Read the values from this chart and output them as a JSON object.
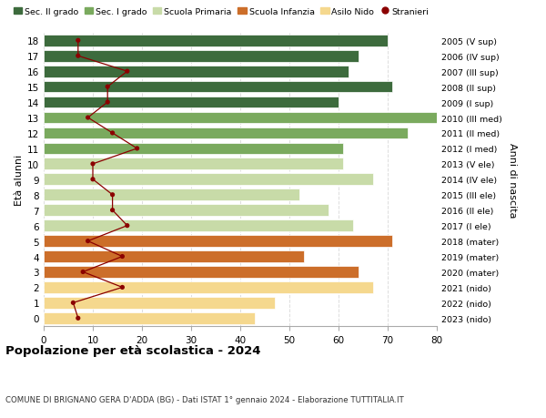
{
  "ages": [
    0,
    1,
    2,
    3,
    4,
    5,
    6,
    7,
    8,
    9,
    10,
    11,
    12,
    13,
    14,
    15,
    16,
    17,
    18
  ],
  "bar_values": [
    43,
    47,
    67,
    64,
    53,
    71,
    63,
    58,
    52,
    67,
    61,
    61,
    74,
    80,
    60,
    71,
    62,
    64,
    70
  ],
  "foreigners": [
    7,
    6,
    16,
    8,
    16,
    9,
    17,
    14,
    14,
    10,
    10,
    19,
    14,
    9,
    13,
    13,
    17,
    7,
    7
  ],
  "bar_colors": [
    "#f5d88e",
    "#f5d88e",
    "#f5d88e",
    "#cc6e2a",
    "#cc6e2a",
    "#cc6e2a",
    "#c8dba8",
    "#c8dba8",
    "#c8dba8",
    "#c8dba8",
    "#c8dba8",
    "#7aaa5e",
    "#7aaa5e",
    "#7aaa5e",
    "#3d6b3d",
    "#3d6b3d",
    "#3d6b3d",
    "#3d6b3d",
    "#3d6b3d"
  ],
  "right_labels": [
    "2023 (nido)",
    "2022 (nido)",
    "2021 (nido)",
    "2020 (mater)",
    "2019 (mater)",
    "2018 (mater)",
    "2017 (I ele)",
    "2016 (II ele)",
    "2015 (III ele)",
    "2014 (IV ele)",
    "2013 (V ele)",
    "2012 (I med)",
    "2011 (II med)",
    "2010 (III med)",
    "2009 (I sup)",
    "2008 (II sup)",
    "2007 (III sup)",
    "2006 (IV sup)",
    "2005 (V sup)"
  ],
  "title": "Popolazione per età scolastica - 2024",
  "subtitle": "COMUNE DI BRIGNANO GERA D'ADDA (BG) - Dati ISTAT 1° gennaio 2024 - Elaborazione TUTTITALIA.IT",
  "ylabel_left": "Età alunni",
  "ylabel_right": "Anni di nascita",
  "xlim": [
    0,
    80
  ],
  "xticks": [
    0,
    10,
    20,
    30,
    40,
    50,
    60,
    70,
    80
  ],
  "legend_items": [
    {
      "label": "Sec. II grado",
      "color": "#3d6b3d"
    },
    {
      "label": "Sec. I grado",
      "color": "#7aaa5e"
    },
    {
      "label": "Scuola Primaria",
      "color": "#c8dba8"
    },
    {
      "label": "Scuola Infanzia",
      "color": "#cc6e2a"
    },
    {
      "label": "Asilo Nido",
      "color": "#f5d88e"
    },
    {
      "label": "Stranieri",
      "color": "#8b0000"
    }
  ],
  "bg_color": "#ffffff",
  "grid_color": "#dddddd",
  "bar_height": 0.75,
  "foreigners_color": "#8b0000",
  "line_color": "#8b0000"
}
